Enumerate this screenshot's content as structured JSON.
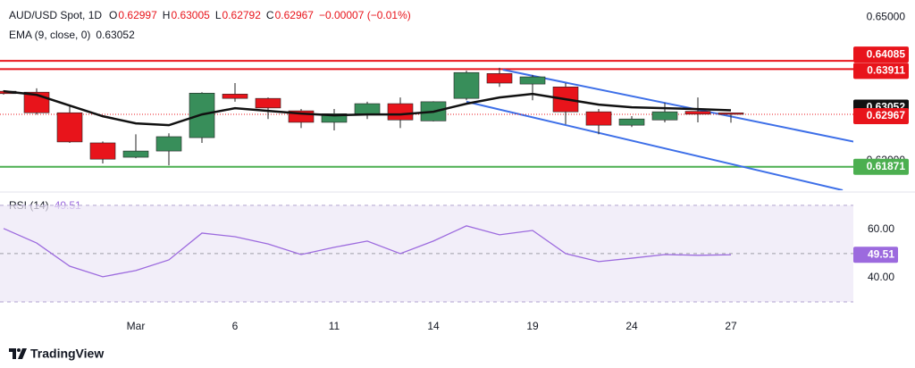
{
  "chart_data": [
    {
      "type": "candlestick",
      "title": "AUD/USD Spot, 1D",
      "ohlc_letters": [
        "O",
        "H",
        "L",
        "C"
      ],
      "change": "−0.00007 (−0.01%)",
      "categories": [
        null,
        null,
        null,
        null,
        "Mar",
        null,
        null,
        "6",
        null,
        null,
        "11",
        null,
        null,
        "14",
        null,
        null,
        "19",
        null,
        null,
        "24",
        null,
        null,
        "27"
      ],
      "open": [
        0.6345,
        0.6343,
        0.63,
        0.6237,
        0.6207,
        0.622,
        0.6248,
        0.6339,
        0.633,
        0.6304,
        0.628,
        0.6298,
        0.6319,
        0.6283,
        0.633,
        0.6382,
        0.636,
        0.6354,
        0.6302,
        0.6274,
        0.6285,
        0.6303,
        0.62997
      ],
      "high": [
        0.6347,
        0.6351,
        0.6315,
        0.624,
        0.6255,
        0.6257,
        0.6343,
        0.6362,
        0.6332,
        0.6308,
        0.6308,
        0.6323,
        0.6332,
        0.6324,
        0.6388,
        0.6394,
        0.6379,
        0.6362,
        0.6308,
        0.6293,
        0.6321,
        0.6332,
        0.63005
      ],
      "low": [
        0.6338,
        0.6296,
        0.6237,
        0.6194,
        0.6205,
        0.619,
        0.6237,
        0.6323,
        0.6287,
        0.6268,
        0.6263,
        0.6287,
        0.6268,
        0.6282,
        0.6326,
        0.6354,
        0.6326,
        0.6276,
        0.6255,
        0.627,
        0.628,
        0.628,
        0.62792
      ],
      "close": [
        0.634,
        0.63,
        0.6239,
        0.6203,
        0.622,
        0.625,
        0.6341,
        0.633,
        0.631,
        0.628,
        0.6298,
        0.6319,
        0.6285,
        0.6323,
        0.6384,
        0.6362,
        0.6375,
        0.6302,
        0.6274,
        0.6287,
        0.6302,
        0.6297,
        0.62967
      ],
      "up_color": "#388e5a",
      "down_color": "#e8141b",
      "ema": {
        "name": "EMA (9, close, 0)",
        "color": "#111111",
        "values": [
          0.6345,
          0.63375,
          0.63151,
          0.62927,
          0.62778,
          0.6274,
          0.62965,
          0.63095,
          0.63039,
          0.62983,
          0.62946,
          0.62965,
          0.62965,
          0.63021,
          0.63189,
          0.63319,
          0.63394,
          0.63282,
          0.6317,
          0.63114,
          0.63095,
          0.63077,
          0.63052
        ]
      },
      "hlines": [
        {
          "value": 0.64085,
          "color": "#e8141b"
        },
        {
          "value": 0.63911,
          "color": "#e8141b"
        },
        {
          "value": 0.61871,
          "color": "#4caf50"
        }
      ],
      "trendlines": [
        {
          "x": [
            15.1,
            25.76
          ],
          "y": [
            0.639,
            0.6239
          ],
          "color": "#3d6fe8"
        },
        {
          "x": [
            14,
            25.38
          ],
          "y": [
            0.6323,
            0.6138
          ],
          "color": "#3d6fe8"
        }
      ],
      "last_price_line": true,
      "ylim": [
        0.6138,
        0.6517
      ],
      "yticks": [
        {
          "value": 0.65,
          "label": "0.65000"
        },
        {
          "value": 0.62,
          "label": "0.62000"
        }
      ]
    },
    {
      "type": "line",
      "title": "RSI (14)",
      "color": "#9c6ade",
      "values": [
        60.4,
        54.4,
        44.8,
        40.4,
        43,
        47.4,
        58.5,
        57,
        54,
        49.6,
        52.6,
        55.2,
        50,
        55.2,
        61.5,
        57.8,
        59.6,
        50,
        46.7,
        48.1,
        49.6,
        49.3,
        49.51
      ],
      "band": [
        30,
        70
      ],
      "midline": 50,
      "ylim": [
        23.7,
        74.4
      ],
      "yticks": [
        {
          "value": 60,
          "label": "60.00"
        },
        {
          "value": 40,
          "label": "40.00"
        }
      ]
    }
  ],
  "footer": {
    "brand": "TradingView"
  }
}
